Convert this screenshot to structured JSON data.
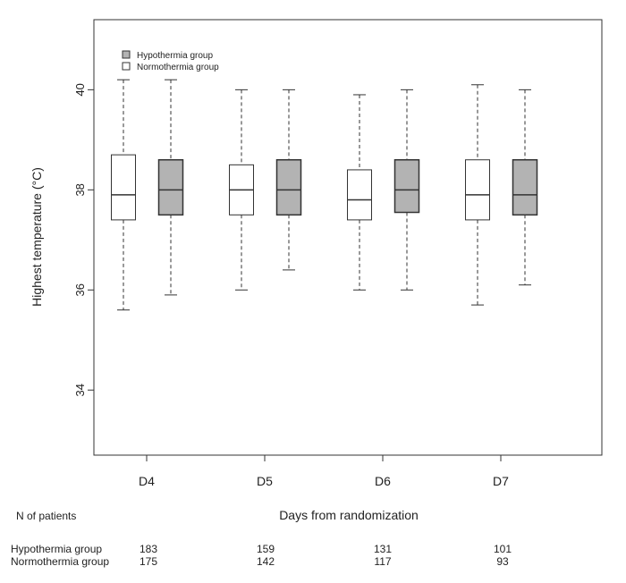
{
  "chart_data": {
    "type": "boxplot",
    "ylabel": "Highest temperature (°C)",
    "xlabel": "Days from randomization",
    "ylim": [
      32.7,
      41.4
    ],
    "yticks": [
      34,
      36,
      38,
      40
    ],
    "categories": [
      "D4",
      "D5",
      "D6",
      "D7"
    ],
    "grid": false,
    "legend_position": "top-left",
    "legend": [
      {
        "name": "Hypothermia group",
        "color": "#b3b3b3"
      },
      {
        "name": "Normothermia group",
        "color": "#ffffff"
      }
    ],
    "series": [
      {
        "name": "Normothermia group",
        "color": "#ffffff",
        "boxes": [
          {
            "min": 35.6,
            "q1": 37.4,
            "median": 37.9,
            "q3": 38.7,
            "max": 40.2
          },
          {
            "min": 36.0,
            "q1": 37.5,
            "median": 38.0,
            "q3": 38.5,
            "max": 40.0
          },
          {
            "min": 36.0,
            "q1": 37.4,
            "median": 37.8,
            "q3": 38.4,
            "max": 39.9
          },
          {
            "min": 35.7,
            "q1": 37.4,
            "median": 37.9,
            "q3": 38.6,
            "max": 40.1
          }
        ]
      },
      {
        "name": "Hypothermia group",
        "color": "#b3b3b3",
        "boxes": [
          {
            "min": 35.9,
            "q1": 37.5,
            "median": 38.0,
            "q3": 38.6,
            "max": 40.2
          },
          {
            "min": 36.4,
            "q1": 37.5,
            "median": 38.0,
            "q3": 38.6,
            "max": 40.0
          },
          {
            "min": 36.0,
            "q1": 37.55,
            "median": 38.0,
            "q3": 38.6,
            "max": 40.0
          },
          {
            "min": 36.1,
            "q1": 37.5,
            "median": 37.9,
            "q3": 38.6,
            "max": 40.0
          }
        ]
      }
    ]
  },
  "patients_table": {
    "title": "N of patients",
    "rows": [
      {
        "label": "Hypothermia group",
        "counts": [
          "183",
          "159",
          "131",
          "101"
        ]
      },
      {
        "label": "Normothermia group",
        "counts": [
          "175",
          "142",
          "117",
          "93"
        ]
      }
    ]
  }
}
